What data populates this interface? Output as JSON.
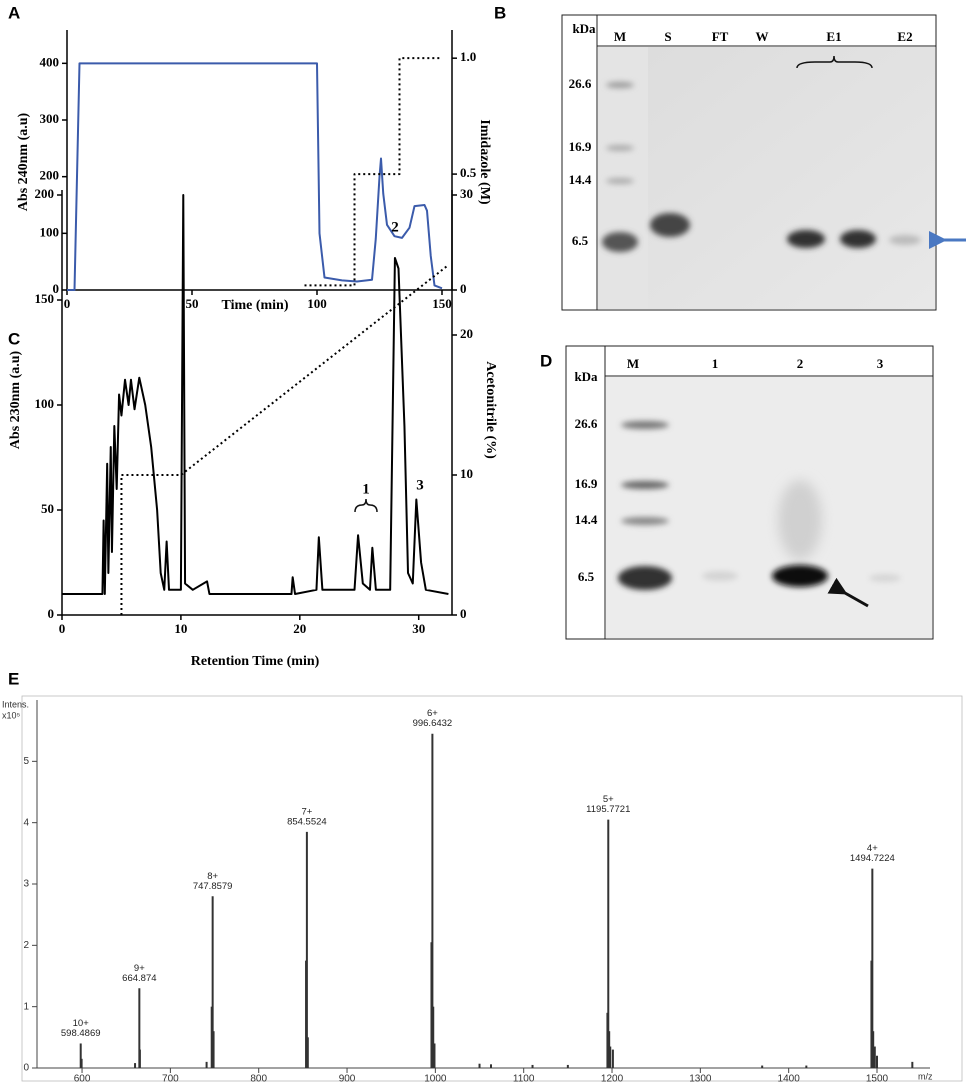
{
  "panel_labels": [
    "A",
    "B",
    "C",
    "D",
    "E"
  ],
  "chart_data": [
    {
      "type": "line",
      "xlabel": "Time (min)",
      "ylabel": "Abs 240nm (a.u)",
      "y2label": "Imidazole (M)",
      "xlim": [
        0,
        154
      ],
      "xticks": [
        0,
        50,
        100,
        150
      ],
      "ylim": [
        0,
        450
      ],
      "yticks": [
        0,
        100,
        200,
        300,
        400
      ],
      "y2lim": [
        0,
        1.1
      ],
      "y2ticks": [
        0,
        0.5,
        {
          "value": 1,
          "label": "1.0"
        }
      ],
      "series": [
        {
          "color": "#3b5bab",
          "linestyle": "solid",
          "x": [
            0,
            3,
            5,
            100,
            101,
            103,
            110,
            116,
            122,
            123.5,
            125,
            125.6,
            126.5,
            128,
            131,
            134,
            137,
            139,
            143,
            144,
            145.5,
            147,
            150
          ],
          "values": [
            0,
            0,
            400,
            400,
            100,
            22,
            17,
            15,
            18,
            90,
            200,
            232,
            170,
            115,
            95,
            92,
            110,
            148,
            150,
            140,
            60,
            8,
            3
          ]
        },
        {
          "color": "#000000",
          "linestyle": "dotted",
          "axis": "y2",
          "x": [
            95,
            115,
            115,
            133,
            133,
            150
          ],
          "values": [
            0.02,
            0.02,
            0.5,
            0.5,
            1.0,
            1.0
          ]
        }
      ]
    },
    {
      "type": "line",
      "xlabel": "Retention Time (min)",
      "ylabel": "Abs 230nm (a.u)",
      "y2label": "Acetonitrile (%)",
      "annotations": [
        "1",
        "2",
        "3"
      ],
      "xlim": [
        0,
        32.8
      ],
      "xticks": [
        0,
        10,
        20,
        30
      ],
      "ylim": [
        0,
        200
      ],
      "yticks": [
        0,
        50,
        100,
        150,
        200
      ],
      "y2lim": [
        0,
        30
      ],
      "y2ticks": [
        0,
        10,
        20,
        30
      ],
      "series": [
        {
          "color": "#000000",
          "linestyle": "solid",
          "x": [
            0,
            3.4,
            3.5,
            3.6,
            3.8,
            3.9,
            4.1,
            4.2,
            4.4,
            4.6,
            4.8,
            5.0,
            5.3,
            5.6,
            5.8,
            6.1,
            6.5,
            7.0,
            7.5,
            8.0,
            8.3,
            8.6,
            8.8,
            9.0,
            10.0,
            10.2,
            10.35,
            11.0,
            12.2,
            12.4,
            19.3,
            19.4,
            19.6,
            21.4,
            21.6,
            21.9,
            24.6,
            24.9,
            25.3,
            25.9,
            26.1,
            26.4,
            27.6,
            28.0,
            28.3,
            28.8,
            29.1,
            29.5,
            29.8,
            30.2,
            30.6,
            32.5
          ],
          "values": [
            10,
            10,
            45,
            10,
            72,
            20,
            80,
            30,
            90,
            60,
            105,
            95,
            112,
            100,
            112,
            98,
            113,
            100,
            80,
            50,
            20,
            12,
            35,
            12,
            12,
            200,
            15,
            12,
            16,
            10,
            10,
            18,
            10,
            12,
            37,
            12,
            12,
            38,
            15,
            12,
            32,
            12,
            12,
            170,
            165,
            90,
            20,
            15,
            55,
            25,
            12,
            10
          ]
        },
        {
          "color": "#000000",
          "linestyle": "dotted",
          "axis": "y2",
          "x": [
            5,
            5,
            10,
            32.5
          ],
          "values": [
            0,
            10,
            10,
            25
          ]
        }
      ]
    },
    {
      "type": "spectrum",
      "ylabel": "Intens.",
      "y_multiplier": "x10⁵",
      "xlabel": "m/z",
      "xlim": [
        549,
        1560
      ],
      "xticks": [
        600,
        700,
        800,
        900,
        1000,
        1100,
        1200,
        1300,
        1400,
        1500
      ],
      "ylim": [
        0,
        6
      ],
      "yticks": [
        0,
        1,
        2,
        3,
        4,
        5
      ],
      "series": [
        {
          "color": "#333333",
          "x": [
            598.4869,
            664.874,
            747.8579,
            854.5524,
            996.6432,
            1195.7721,
            1494.7224
          ],
          "values": [
            0.4,
            1.3,
            2.8,
            3.85,
            5.45,
            4.05,
            3.25
          ],
          "charges": [
            "10+",
            "9+",
            "8+",
            "7+",
            "6+",
            "5+",
            "4+"
          ]
        },
        {
          "color": "#333333",
          "x": [
            599.5,
            660,
            665.5,
            741,
            746.8,
            748.9,
            853.6,
            855.6,
            995.6,
            997.6,
            999.0,
            1050,
            1063,
            1110,
            1150,
            1194.8,
            1196.8,
            1198,
            1201,
            1370,
            1420,
            1493.7,
            1495.7,
            1497.5,
            1500,
            1540
          ],
          "values": [
            0.15,
            0.08,
            0.3,
            0.1,
            1.0,
            0.6,
            1.75,
            0.5,
            2.05,
            1.0,
            0.4,
            0.07,
            0.06,
            0.05,
            0.05,
            0.9,
            0.6,
            0.35,
            0.3,
            0.04,
            0.04,
            1.75,
            0.6,
            0.35,
            0.2,
            0.1
          ]
        }
      ]
    }
  ],
  "gels": [
    {
      "kda": "kDa",
      "lanes": [
        "M",
        "S",
        "FT",
        "W",
        "E1",
        "E2"
      ],
      "markers": [
        "26.6",
        "16.9",
        "14.4",
        "6.5"
      ]
    },
    {
      "kda": "kDa",
      "lanes": [
        "M",
        "1",
        "2",
        "3"
      ],
      "markers": [
        "26.6",
        "16.9",
        "14.4",
        "6.5"
      ]
    }
  ]
}
